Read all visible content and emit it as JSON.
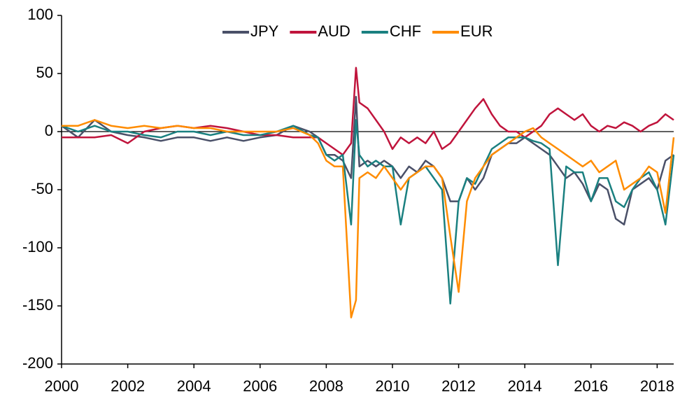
{
  "chart_data": {
    "type": "line",
    "x": [
      2000,
      2000.5,
      2001,
      2001.5,
      2002,
      2002.5,
      2003,
      2003.5,
      2004,
      2004.5,
      2005,
      2005.5,
      2006,
      2006.5,
      2007,
      2007.5,
      2007.75,
      2008,
      2008.25,
      2008.5,
      2008.75,
      2008.9,
      2009,
      2009.25,
      2009.5,
      2009.75,
      2010,
      2010.25,
      2010.5,
      2010.75,
      2011,
      2011.25,
      2011.5,
      2011.75,
      2012,
      2012.25,
      2012.5,
      2012.75,
      2013,
      2013.25,
      2013.5,
      2013.75,
      2014,
      2014.25,
      2014.5,
      2014.75,
      2015,
      2015.25,
      2015.5,
      2015.75,
      2016,
      2016.25,
      2016.5,
      2016.75,
      2017,
      2017.25,
      2017.5,
      2017.75,
      2018,
      2018.25,
      2018.5
    ],
    "series": [
      {
        "name": "JPY",
        "color": "#4a5068",
        "values": [
          5,
          -5,
          10,
          0,
          -3,
          -5,
          -8,
          -5,
          -5,
          -8,
          -5,
          -8,
          -5,
          -3,
          5,
          0,
          -5,
          -20,
          -20,
          -25,
          -40,
          30,
          -30,
          -25,
          -30,
          -25,
          -30,
          -40,
          -30,
          -35,
          -25,
          -30,
          -40,
          -60,
          -60,
          -40,
          -50,
          -40,
          -20,
          -15,
          -10,
          -10,
          -5,
          -10,
          -15,
          -20,
          -30,
          -40,
          -35,
          -45,
          -60,
          -45,
          -50,
          -75,
          -80,
          -50,
          -45,
          -40,
          -50,
          -25,
          -20
        ]
      },
      {
        "name": "AUD",
        "color": "#c0143c",
        "values": [
          -5,
          -5,
          -5,
          -3,
          -10,
          0,
          3,
          5,
          3,
          5,
          3,
          0,
          -3,
          -3,
          -5,
          -5,
          -5,
          -10,
          -15,
          -20,
          -10,
          55,
          25,
          20,
          10,
          0,
          -15,
          -5,
          -10,
          -5,
          -10,
          0,
          -15,
          -10,
          0,
          10,
          20,
          28,
          15,
          5,
          0,
          0,
          -5,
          0,
          5,
          15,
          20,
          15,
          10,
          15,
          5,
          0,
          5,
          3,
          8,
          5,
          0,
          5,
          8,
          15,
          10
        ]
      },
      {
        "name": "CHF",
        "color": "#1a8080",
        "values": [
          5,
          0,
          5,
          0,
          0,
          -3,
          -5,
          0,
          0,
          -3,
          0,
          -3,
          -3,
          0,
          5,
          -3,
          -5,
          -20,
          -25,
          -20,
          -80,
          10,
          -20,
          -30,
          -25,
          -30,
          -30,
          -80,
          -40,
          -35,
          -30,
          -40,
          -50,
          -148,
          -60,
          -40,
          -45,
          -30,
          -15,
          -10,
          -5,
          -5,
          -5,
          -8,
          -10,
          -15,
          -115,
          -30,
          -35,
          -35,
          -60,
          -40,
          -40,
          -60,
          -65,
          -50,
          -40,
          -35,
          -50,
          -80,
          -20
        ]
      },
      {
        "name": "EUR",
        "color": "#ff8c00",
        "values": [
          5,
          5,
          10,
          5,
          3,
          5,
          3,
          5,
          3,
          3,
          0,
          0,
          0,
          0,
          3,
          -3,
          -10,
          -25,
          -30,
          -30,
          -160,
          -145,
          -40,
          -35,
          -40,
          -30,
          -40,
          -50,
          -40,
          -35,
          -30,
          -30,
          -40,
          -90,
          -138,
          -60,
          -40,
          -30,
          -20,
          -15,
          -10,
          -5,
          0,
          3,
          -5,
          -10,
          -15,
          -20,
          -25,
          -30,
          -25,
          -35,
          -30,
          -25,
          -50,
          -45,
          -40,
          -30,
          -35,
          -70,
          -5
        ]
      }
    ],
    "xlim": [
      2000,
      2018.5
    ],
    "xticks": [
      2000,
      2002,
      2004,
      2006,
      2008,
      2010,
      2012,
      2014,
      2016,
      2018
    ],
    "ylim": [
      -200,
      100
    ],
    "yticks": [
      -200,
      -150,
      -100,
      -50,
      0,
      50,
      100
    ],
    "grid": false,
    "legend": "top"
  }
}
